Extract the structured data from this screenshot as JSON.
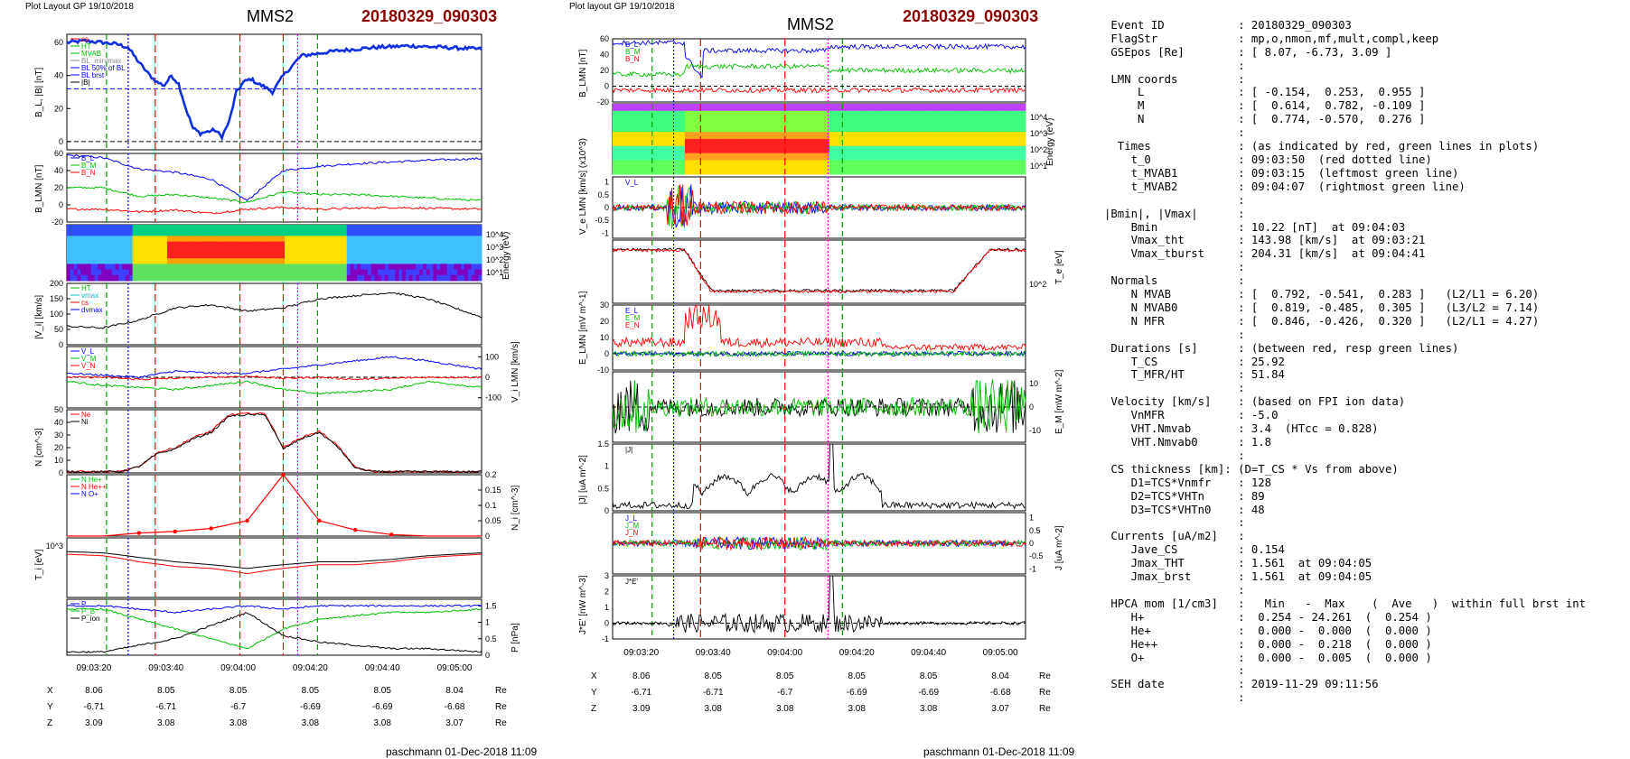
{
  "left": {
    "header_left": "Plot Layout GP 19/10/2018",
    "title": "MMS2",
    "event": "20180329_090303",
    "footer": "paschmann 01-Dec-2018 11:09",
    "time_ticks": [
      "09:03:20",
      "09:03:40",
      "09:04:00",
      "09:04:20",
      "09:04:40",
      "09:05:00"
    ],
    "coords": {
      "rows": [
        {
          "label": "X",
          "values": [
            "8.06",
            "8.05",
            "8.05",
            "8.05",
            "8.05",
            "8.04"
          ],
          "unit": "Re"
        },
        {
          "label": "Y",
          "values": [
            "-6.71",
            "-6.71",
            "-6.7",
            "-6.69",
            "-6.69",
            "-6.68"
          ],
          "unit": "Re"
        },
        {
          "label": "Z",
          "values": [
            "3.09",
            "3.08",
            "3.08",
            "3.08",
            "3.08",
            "3.07"
          ],
          "unit": "Re"
        }
      ]
    }
  },
  "middle": {
    "header_left": "Plot layout GP 19/10/2018",
    "title": "MMS2",
    "event": "20180329_090303",
    "footer": "paschmann 01-Dec-2018 11:09",
    "time_ticks": [
      "09:03:20",
      "09:03:40",
      "09:04:00",
      "09:04:20",
      "09:04:40",
      "09:05:00"
    ],
    "coords": {
      "rows": [
        {
          "label": "X",
          "values": [
            "8.06",
            "8.05",
            "8.05",
            "8.05",
            "8.05",
            "8.04"
          ],
          "unit": "Re"
        },
        {
          "label": "Y",
          "values": [
            "-6.71",
            "-6.71",
            "-6.7",
            "-6.69",
            "-6.69",
            "-6.68"
          ],
          "unit": "Re"
        },
        {
          "label": "Z",
          "values": [
            "3.09",
            "3.08",
            "3.08",
            "3.08",
            "3.08",
            "3.07"
          ],
          "unit": "Re"
        }
      ]
    }
  },
  "chart_data": [
    {
      "type": "line",
      "panel": "left-1",
      "ylabel": "B_L, |B| [nT]",
      "ylim": [
        -5,
        65
      ],
      "yticks": [
        0,
        20,
        40,
        60
      ],
      "legend": [
        "cs",
        "HT",
        "MVAB",
        "BL_min/max",
        "BL 50% of BL",
        "BL brst",
        "|B|"
      ],
      "x_seconds": [
        0,
        10,
        20,
        28,
        34,
        40,
        46,
        50,
        54,
        58,
        62,
        66,
        70,
        74,
        78,
        82,
        86,
        90,
        94,
        98,
        102,
        106,
        110,
        114,
        120,
        130,
        150,
        170,
        190,
        210,
        230
      ],
      "series": [
        {
          "name": "BL brst",
          "values": [
            60,
            61,
            60,
            59,
            57,
            48,
            40,
            36,
            34,
            40,
            35,
            20,
            8,
            5,
            6,
            7,
            3,
            12,
            30,
            36,
            38,
            35,
            33,
            30,
            40,
            52,
            55,
            57,
            58,
            57,
            56
          ]
        }
      ],
      "hlines": [
        0,
        32
      ]
    },
    {
      "type": "line",
      "panel": "left-2",
      "ylabel": "B_LMN [nT]",
      "ylim": [
        -20,
        60
      ],
      "yticks": [
        -20,
        0,
        20,
        40,
        60
      ],
      "legend": [
        "B_L",
        "B_M",
        "B_N"
      ],
      "x_seconds": [
        0,
        20,
        40,
        60,
        80,
        100,
        120,
        140,
        160,
        180,
        200,
        230
      ],
      "series": [
        {
          "name": "B_L",
          "values": [
            58,
            55,
            42,
            38,
            30,
            5,
            40,
            45,
            48,
            50,
            52,
            54
          ]
        },
        {
          "name": "B_M",
          "values": [
            20,
            20,
            10,
            12,
            8,
            3,
            15,
            12,
            12,
            10,
            8,
            5
          ]
        },
        {
          "name": "B_N",
          "values": [
            -5,
            -5,
            -8,
            -6,
            -10,
            -5,
            -3,
            -5,
            -4,
            -3,
            -4,
            -5
          ]
        }
      ]
    },
    {
      "type": "heatmap",
      "panel": "left-3",
      "ylabel": "Energy (eV)",
      "yticks": [
        "10^1",
        "10^2",
        "10^3",
        "10^4"
      ]
    },
    {
      "type": "line",
      "panel": "left-4",
      "ylabel": "|V_i| [km/s]",
      "ylim": [
        0,
        200
      ],
      "yticks": [
        0,
        50,
        100,
        150,
        200
      ],
      "legend": [
        "HT",
        "vmax",
        "cs",
        "dvmax"
      ],
      "x_seconds": [
        0,
        20,
        40,
        60,
        80,
        100,
        120,
        140,
        160,
        180,
        200,
        230
      ],
      "series": [
        {
          "name": "|Vi|",
          "values": [
            60,
            55,
            80,
            120,
            130,
            110,
            120,
            150,
            160,
            170,
            150,
            90
          ]
        }
      ]
    },
    {
      "type": "line",
      "panel": "left-5",
      "ylabel": "V_i LMN [km/s]",
      "ylim": [
        -150,
        150
      ],
      "yticks": [
        -100,
        0,
        100
      ],
      "legend": [
        "V_L",
        "V_M",
        "V_N"
      ],
      "x_seconds": [
        0,
        20,
        40,
        60,
        80,
        100,
        120,
        140,
        160,
        180,
        200,
        230
      ],
      "series": [
        {
          "name": "V_L",
          "values": [
            20,
            10,
            0,
            30,
            20,
            20,
            40,
            60,
            80,
            100,
            80,
            40
          ]
        },
        {
          "name": "V_M",
          "values": [
            -20,
            -40,
            -50,
            -60,
            -40,
            -20,
            -60,
            -80,
            -70,
            -60,
            -20,
            -50
          ]
        },
        {
          "name": "V_N",
          "values": [
            0,
            0,
            -10,
            -5,
            0,
            5,
            -5,
            0,
            -10,
            -5,
            0,
            0
          ]
        }
      ]
    },
    {
      "type": "line",
      "panel": "left-6",
      "ylabel": "N [cm^-3]",
      "ylim": [
        0,
        50
      ],
      "yticks": [
        0,
        10,
        20,
        30,
        40,
        50
      ],
      "legend": [
        "Ne",
        "Ni"
      ],
      "x_seconds": [
        0,
        20,
        30,
        40,
        50,
        60,
        70,
        80,
        90,
        100,
        110,
        120,
        130,
        140,
        150,
        160,
        170,
        180,
        230
      ],
      "series": [
        {
          "name": "Ne",
          "values": [
            1,
            1,
            1,
            5,
            16,
            20,
            28,
            33,
            46,
            47,
            47,
            20,
            28,
            33,
            22,
            4,
            1,
            1,
            1
          ]
        },
        {
          "name": "Ni",
          "values": [
            1,
            1,
            1,
            5,
            15,
            19,
            27,
            32,
            45,
            46,
            46,
            19,
            27,
            32,
            21,
            4,
            1,
            1,
            1
          ]
        }
      ]
    },
    {
      "type": "line",
      "panel": "left-7",
      "ylabel": "N_i [cm^-3]",
      "ylim": [
        0,
        0.2
      ],
      "yticks": [
        0,
        0.05,
        0.1,
        0.15,
        0.2
      ],
      "legend": [
        "N He+",
        "N He++",
        "N O+"
      ],
      "x_seconds": [
        0,
        20,
        40,
        60,
        80,
        100,
        120,
        140,
        160,
        180,
        200,
        230
      ],
      "series": [
        {
          "name": "N He++",
          "values": [
            0,
            0,
            0.01,
            0.015,
            0.025,
            0.05,
            0.2,
            0.05,
            0.02,
            0.005,
            0,
            0
          ]
        }
      ]
    },
    {
      "type": "line",
      "panel": "left-8",
      "ylabel": "T_i [eV]",
      "yticks": [
        "10^3"
      ],
      "x_seconds": [
        0,
        20,
        40,
        60,
        80,
        100,
        120,
        140,
        160,
        180,
        200,
        230
      ],
      "series": [
        {
          "name": "T_par",
          "values": [
            1100,
            1000,
            700,
            500,
            400,
            300,
            400,
            500,
            500,
            600,
            800,
            1000
          ]
        },
        {
          "name": "T_perp",
          "values": [
            900,
            800,
            500,
            350,
            300,
            200,
            300,
            400,
            400,
            500,
            700,
            900
          ]
        }
      ]
    },
    {
      "type": "line",
      "panel": "left-9",
      "ylabel": "P [nPa]",
      "ylim": [
        0,
        1.7
      ],
      "yticks": [
        0,
        0.5,
        1.0,
        1.5
      ],
      "legend": [
        "P",
        "P_B",
        "P_ion"
      ],
      "x_seconds": [
        0,
        20,
        40,
        60,
        80,
        100,
        120,
        140,
        160,
        180,
        200,
        230
      ],
      "series": [
        {
          "name": "P",
          "values": [
            1.5,
            1.5,
            1.4,
            1.3,
            1.4,
            1.5,
            1.4,
            1.5,
            1.5,
            1.5,
            1.5,
            1.5
          ]
        },
        {
          "name": "P_B",
          "values": [
            1.4,
            1.4,
            1.1,
            0.8,
            0.5,
            0.2,
            0.8,
            1.1,
            1.2,
            1.3,
            1.3,
            1.4
          ]
        },
        {
          "name": "P_ion",
          "values": [
            0.1,
            0.1,
            0.3,
            0.5,
            0.9,
            1.3,
            0.6,
            0.4,
            0.3,
            0.2,
            0.2,
            0.1
          ]
        }
      ]
    },
    {
      "type": "line",
      "panel": "mid-1",
      "ylabel": "B_LMN [nT]",
      "ylim": [
        -20,
        60
      ],
      "yticks": [
        -20,
        0,
        20,
        40,
        60
      ],
      "legend": [
        "B_L",
        "B_M",
        "B_N"
      ]
    },
    {
      "type": "heatmap",
      "panel": "mid-2",
      "ylabel": "Energy (eV)",
      "yticks": [
        "10^1",
        "10^2",
        "10^3",
        "10^4"
      ]
    },
    {
      "type": "line",
      "panel": "mid-3",
      "ylabel": "V_e LMN [km/s] (x10^3)",
      "ylim": [
        -1.2,
        1.2
      ],
      "yticks": [
        -1.0,
        -0.5,
        0.0,
        0.5,
        1.0
      ],
      "legend": [
        "V_L"
      ]
    },
    {
      "type": "line",
      "panel": "mid-4",
      "ylabel": "T_e [eV]",
      "yticks": [
        "10^2"
      ]
    },
    {
      "type": "line",
      "panel": "mid-5",
      "ylabel": "E_LMN [mV m^-1]",
      "ylim": [
        -10,
        30
      ],
      "yticks": [
        -10,
        0,
        10,
        20,
        30
      ],
      "legend": [
        "E_L",
        "E_M",
        "E_N"
      ]
    },
    {
      "type": "line",
      "panel": "mid-6",
      "ylabel": "E_M [mW m^-2]",
      "ylim": [
        -15,
        15
      ],
      "yticks": [
        -10,
        0,
        10
      ]
    },
    {
      "type": "line",
      "panel": "mid-7",
      "ylabel": "|J| [uA m^-2]",
      "ylim": [
        0,
        1.5
      ],
      "yticks": [
        0,
        0.5,
        1.0,
        1.5
      ],
      "legend": [
        "|J|"
      ]
    },
    {
      "type": "line",
      "panel": "mid-8",
      "ylabel": "J [uA m^-2]",
      "ylim": [
        -1.2,
        1.2
      ],
      "yticks": [
        -1.0,
        -0.5,
        0.0,
        0.5,
        1.0
      ],
      "legend": [
        "J_L",
        "J_M",
        "J_N"
      ]
    },
    {
      "type": "line",
      "panel": "mid-9",
      "ylabel": "J*E' [nW m^-3]",
      "ylim": [
        -1,
        3
      ],
      "yticks": [
        -1,
        0,
        1,
        2,
        3
      ],
      "legend": [
        "J*E'"
      ]
    }
  ],
  "info": [
    " ",
    " Event ID           : 20180329_090303",
    " FlagStr            : mp,o,nmon,mf,mult,compl,keep",
    " GSEpos [Re]        : [ 8.07, -6.73, 3.09 ]",
    "                    :",
    " LMN coords         :",
    "     L              : [ -0.154,  0.253,  0.955 ]",
    "     M              : [  0.614,  0.782, -0.109 ]",
    "     N              : [  0.774, -0.570,  0.276 ]",
    "                    :",
    "  Times             : (as indicated by red, green lines in plots)",
    "    t_0             : 09:03:50  (red dotted line)",
    "    t_MVAB1         : 09:03:15  (leftmost green line)",
    "    t_MVAB2         : 09:04:07  (rightmost green line)",
    "                    :",
    "|Bmin|, |Vmax|      :",
    "    Bmin            : 10.22 [nT]  at 09:04:03",
    "    Vmax_tht        : 143.98 [km/s]  at 09:03:21",
    "    Vmax_tburst     : 204.31 [km/s]  at 09:04:41",
    "                    :",
    " Normals            :",
    "    N MVAB          : [  0.792, -0.541,  0.283 ]   (L2/L1 = 6.20)",
    "    N MVAB0         : [  0.819, -0.485,  0.305 ]   (L3/L2 = 7.14)",
    "    N MFR           : [  0.846, -0.426,  0.320 ]   (L2/L1 = 4.27)",
    "                    :",
    " Durations [s]      : (between red, resp green lines)",
    "    T_CS            : 25.92",
    "    T_MFR/HT        : 51.84",
    "                    :",
    " Velocity [km/s]    : (based on FPI ion data)",
    "    VnMFR           : -5.0",
    "    VHT.Nmvab       : 3.4  (HTcc = 0.828)",
    "    VHT.Nmvab0      : 1.8",
    "                    :",
    " CS thickness [km]: (D=T_CS * Vs from above)",
    "    D1=TCS*Vnmfr    : 128",
    "    D2=TCS*VHTn     : 89",
    "    D3=TCS*VHTn0    : 48",
    "                    :",
    " Currents [uA/m2]   :",
    "    Jave_CS         : 0.154",
    "    Jmax_THT        : 1.561  at 09:04:05",
    "    Jmax_brst       : 1.561  at 09:04:05",
    "                    :",
    " HPCA mom [1/cm3]   :   Min   -  Max    (  Ave   )  within full brst int",
    "    H+              :  0.254 - 24.261  (  0.254 )",
    "    He+             :  0.000 -  0.000  (  0.000 )",
    "    He++            :  0.000 -  0.218  (  0.000 )",
    "    O+              :  0.000 -  0.005  (  0.000 )",
    "                    :",
    " SEH date           : 2019-11-29 09:11:56",
    "                    :"
  ]
}
